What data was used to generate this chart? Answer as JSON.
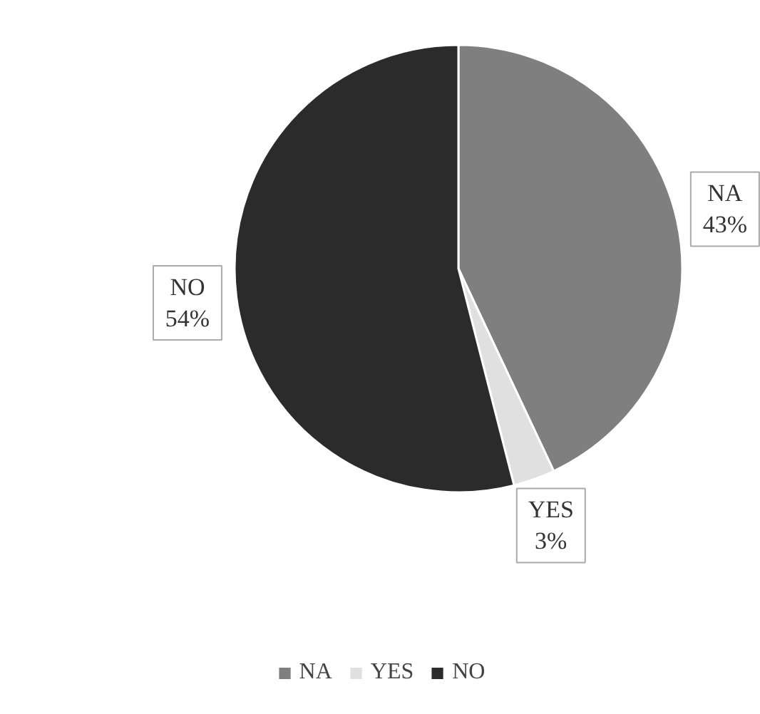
{
  "chart_data": {
    "type": "pie",
    "categories": [
      "NA",
      "YES",
      "NO"
    ],
    "values": [
      43,
      3,
      54
    ],
    "colors": [
      "#7f7f7f",
      "#e0e0e0",
      "#2b2b2b"
    ],
    "value_labels": [
      "43%",
      "3%",
      "54%"
    ],
    "legend": "bottom"
  }
}
